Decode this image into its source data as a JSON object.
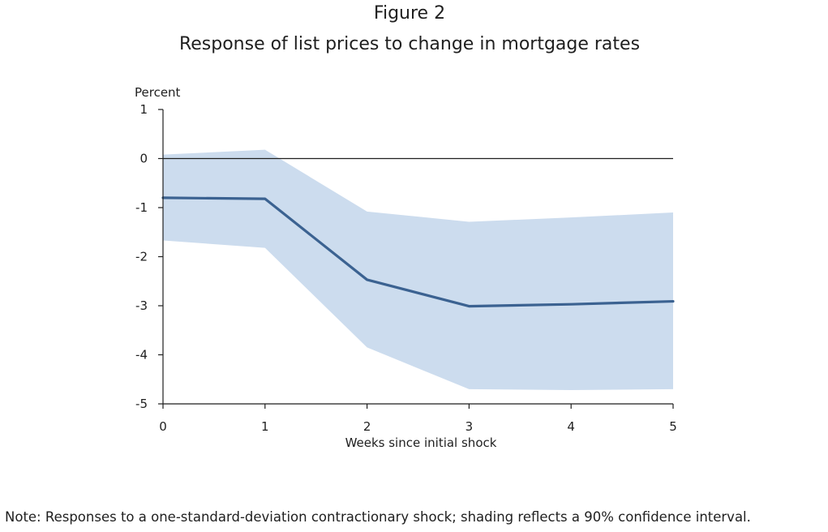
{
  "header": {
    "figure_label": "Figure 2",
    "title": "Response of list prices to change in mortgage rates"
  },
  "note": "Note: Responses to a one-standard-deviation contractionary shock; shading reflects a 90% confidence interval.",
  "colors": {
    "line": "#3b6291",
    "band": "#ccdcee",
    "axis": "#1f1f1f"
  },
  "chart_data": {
    "type": "line",
    "title": "Response of list prices to change in mortgage rates",
    "xlabel": "Weeks since initial shock",
    "ylabel": "Percent",
    "x": [
      0,
      1,
      2,
      3,
      4,
      5
    ],
    "x_tick_labels": [
      "0",
      "1",
      "2",
      "3",
      "4",
      "5"
    ],
    "y_tick_values": [
      1,
      0,
      -1,
      -2,
      -3,
      -4,
      -5
    ],
    "y_tick_labels": [
      "1",
      "0",
      "-1",
      "-2",
      "-3",
      "-4",
      "-5"
    ],
    "xlim": [
      0,
      5
    ],
    "ylim": [
      -5,
      1
    ],
    "reference_line": 0,
    "grid": false,
    "series": [
      {
        "values": [
          -0.8,
          -0.82,
          -2.47,
          -3.01,
          -2.97,
          -2.91
        ]
      }
    ],
    "band": {
      "upper": [
        0.08,
        0.18,
        -1.08,
        -1.29,
        -1.2,
        -1.1
      ],
      "lower": [
        -1.67,
        -1.82,
        -3.85,
        -4.7,
        -4.72,
        -4.7
      ]
    }
  }
}
